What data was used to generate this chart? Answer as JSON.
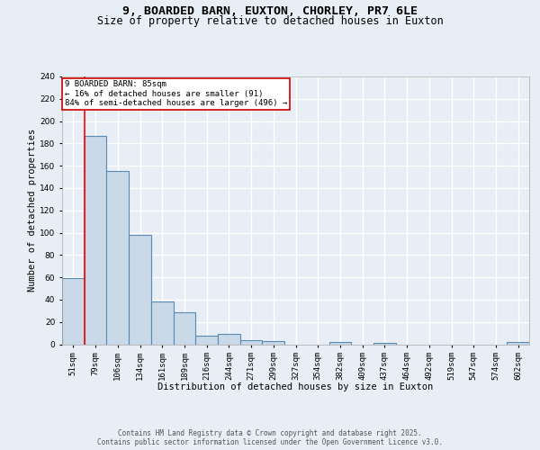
{
  "title_line1": "9, BOARDED BARN, EUXTON, CHORLEY, PR7 6LE",
  "title_line2": "Size of property relative to detached houses in Euxton",
  "xlabel": "Distribution of detached houses by size in Euxton",
  "ylabel": "Number of detached properties",
  "categories": [
    "51sqm",
    "79sqm",
    "106sqm",
    "134sqm",
    "161sqm",
    "189sqm",
    "216sqm",
    "244sqm",
    "271sqm",
    "299sqm",
    "327sqm",
    "354sqm",
    "382sqm",
    "409sqm",
    "437sqm",
    "464sqm",
    "492sqm",
    "519sqm",
    "547sqm",
    "574sqm",
    "602sqm"
  ],
  "values": [
    59,
    187,
    155,
    98,
    38,
    29,
    8,
    9,
    4,
    3,
    0,
    0,
    2,
    0,
    1,
    0,
    0,
    0,
    0,
    0,
    2
  ],
  "bar_color": "#c9d9e8",
  "bar_edge_color": "#5a8ab0",
  "bg_color": "#e8eef5",
  "grid_color": "#ffffff",
  "annotation_text": "9 BOARDED BARN: 85sqm\n← 16% of detached houses are smaller (91)\n84% of semi-detached houses are larger (496) →",
  "annotation_box_color": "#ffffff",
  "annotation_border_color": "#cc0000",
  "red_line_x": 0.5,
  "ylim": [
    0,
    240
  ],
  "yticks": [
    0,
    20,
    40,
    60,
    80,
    100,
    120,
    140,
    160,
    180,
    200,
    220,
    240
  ],
  "footer_text": "Contains HM Land Registry data © Crown copyright and database right 2025.\nContains public sector information licensed under the Open Government Licence v3.0.",
  "title_fontsize": 9.5,
  "subtitle_fontsize": 8.5,
  "axis_label_fontsize": 7.5,
  "tick_fontsize": 6.5,
  "annotation_fontsize": 6.5,
  "footer_fontsize": 5.5
}
